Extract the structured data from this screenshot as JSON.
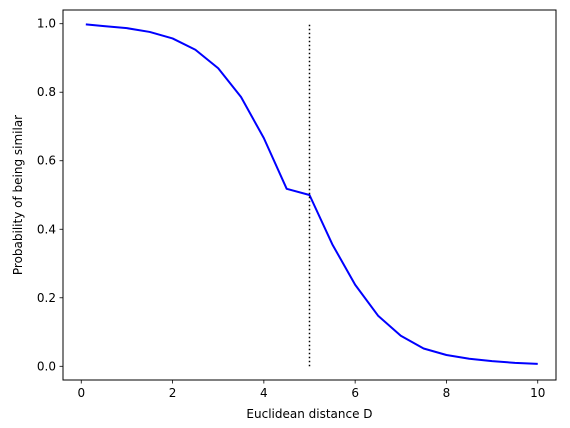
{
  "chart_data": {
    "type": "line",
    "title": "",
    "xlabel": "Euclidean distance D",
    "ylabel": "Probability of being similar",
    "xlim": [
      -0.4,
      10.4
    ],
    "ylim": [
      -0.04,
      1.04
    ],
    "xticks": [
      0,
      2,
      4,
      6,
      8,
      10
    ],
    "yticks": [
      0.0,
      0.2,
      0.4,
      0.6,
      0.8,
      1.0
    ],
    "xtick_labels": [
      "0",
      "2",
      "4",
      "6",
      "8",
      "10"
    ],
    "ytick_labels": [
      "0.0",
      "0.2",
      "0.4",
      "0.6",
      "0.8",
      "1.0"
    ],
    "grid": false,
    "series": [
      {
        "color": "#0000ff",
        "style": "solid",
        "x": [
          0.1,
          0.5,
          1.0,
          1.5,
          2.0,
          2.5,
          3.0,
          3.5,
          4.0,
          4.5,
          5.0,
          5.5,
          6.0,
          6.5,
          7.0,
          7.5,
          8.0,
          8.5,
          9.0,
          9.5,
          10.0
        ],
        "values": [
          0.998,
          0.993,
          0.987,
          0.976,
          0.957,
          0.924,
          0.87,
          0.786,
          0.666,
          0.518,
          0.5,
          0.356,
          0.238,
          0.148,
          0.089,
          0.052,
          0.033,
          0.022,
          0.015,
          0.01,
          0.007
        ]
      },
      {
        "color": "#000000",
        "style": "dotted",
        "x": [
          5.0,
          5.0
        ],
        "values": [
          0.0,
          1.0
        ]
      }
    ]
  }
}
